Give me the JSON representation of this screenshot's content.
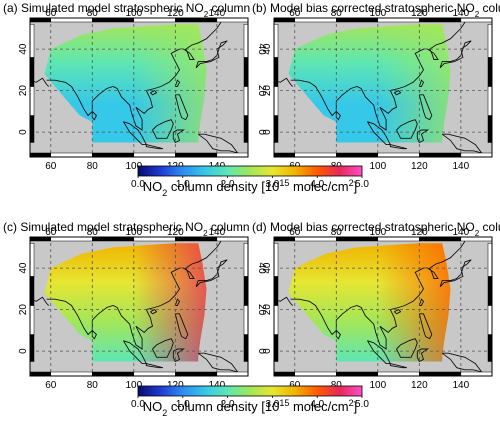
{
  "figure_title": "",
  "colors": {
    "ocean": "#c8c8c8",
    "coast": "#111111",
    "grid": "#555555",
    "colormap": [
      "#0a0a6e",
      "#1e3cd2",
      "#2e8cf0",
      "#36c8e8",
      "#5ee6b4",
      "#a2e65a",
      "#e6e632",
      "#f0b400",
      "#ff5a00",
      "#e6285a",
      "#ff50c8"
    ]
  },
  "units": {
    "label_prefix": "NO",
    "label_sub": "2",
    "label_middle": " column density [10",
    "label_sup": "15",
    "label_suffix": " molec/cm",
    "label_sup2": "2",
    "label_close": "]"
  },
  "chart_data": [
    {
      "type": "heatmap",
      "panel": "a",
      "title_parts": [
        "(a) Simulated model stratospheric NO",
        "2",
        " column"
      ],
      "x_ticks": [
        60,
        80,
        100,
        120,
        140
      ],
      "y_ticks": [
        0,
        20,
        40
      ],
      "xlim": [
        50,
        155
      ],
      "ylim": [
        -12,
        55
      ],
      "colorbar_range": [
        0.0,
        5.0
      ],
      "field_summary": {
        "south_value": 1.3,
        "north_value": 2.3,
        "east_value": 2.6
      }
    },
    {
      "type": "heatmap",
      "panel": "b",
      "title_parts": [
        "(b) Model bias corrected stratospheric NO",
        "2",
        " column"
      ],
      "x_ticks": [
        60,
        80,
        100,
        120,
        140
      ],
      "y_ticks": [
        0,
        20,
        40
      ],
      "xlim": [
        50,
        155
      ],
      "ylim": [
        -12,
        55
      ],
      "colorbar_range": [
        0.0,
        5.0
      ],
      "field_summary": {
        "south_value": 1.3,
        "north_value": 2.3,
        "east_value": 2.5
      }
    },
    {
      "type": "heatmap",
      "panel": "c",
      "title_parts": [
        "(c) Simulated model stratospheric NO",
        "2",
        " column"
      ],
      "x_ticks": [
        60,
        80,
        100,
        120,
        140
      ],
      "y_ticks": [
        0,
        20,
        40
      ],
      "xlim": [
        50,
        155
      ],
      "ylim": [
        -12,
        55
      ],
      "colorbar_range": [
        0.0,
        5.0
      ],
      "field_summary": {
        "south_value": 2.0,
        "north_value": 3.6,
        "east_value": 4.3
      }
    },
    {
      "type": "heatmap",
      "panel": "d",
      "title_parts": [
        "(d) Model bias corrected stratospheric NO",
        "2",
        " column"
      ],
      "x_ticks": [
        60,
        80,
        100,
        120,
        140
      ],
      "y_ticks": [
        0,
        20,
        40
      ],
      "xlim": [
        50,
        155
      ],
      "ylim": [
        -12,
        55
      ],
      "colorbar_range": [
        0.0,
        5.0
      ],
      "field_summary": {
        "south_value": 2.0,
        "north_value": 3.6,
        "east_value": 4.2
      }
    }
  ],
  "colorbars": [
    {
      "ticks": [
        "0.0",
        "1.0",
        "2.0",
        "3.0",
        "4.0",
        "5.0"
      ]
    },
    {
      "ticks": [
        "0.0",
        "1.0",
        "2.0",
        "3.0",
        "4.0",
        "5.0"
      ]
    }
  ]
}
